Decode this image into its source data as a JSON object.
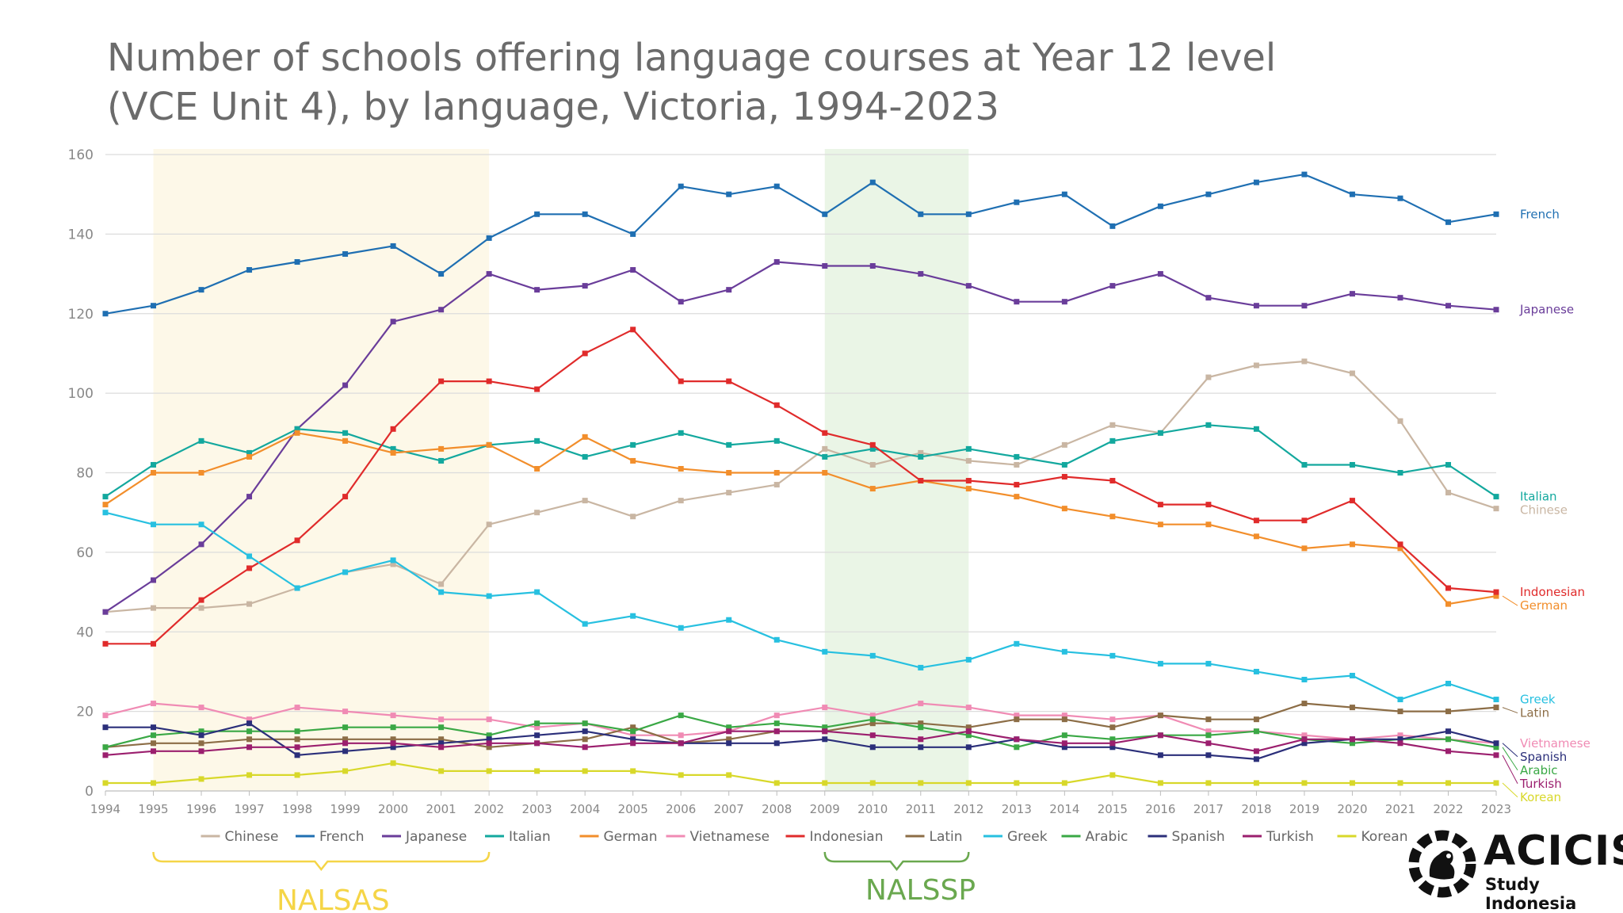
{
  "chart_data": {
    "type": "line",
    "title_line1": "Number of schools offering language courses at Year 12 level",
    "title_line2": "(VCE Unit 4), by language, Victoria, 1994-2023",
    "ylim": [
      0,
      160
    ],
    "yticks": [
      0,
      20,
      40,
      60,
      80,
      100,
      120,
      140,
      160
    ],
    "grid": true,
    "legend_position": "bottom",
    "x": [
      1994,
      1995,
      1996,
      1997,
      1998,
      1999,
      2000,
      2001,
      2002,
      2003,
      2004,
      2005,
      2006,
      2007,
      2008,
      2009,
      2010,
      2011,
      2012,
      2013,
      2014,
      2015,
      2016,
      2017,
      2018,
      2019,
      2020,
      2021,
      2022,
      2023
    ],
    "series": [
      {
        "name": "Chinese",
        "color": "#c9b6a3",
        "values": [
          45,
          46,
          46,
          47,
          51,
          55,
          57,
          52,
          67,
          70,
          73,
          69,
          73,
          75,
          77,
          86,
          82,
          85,
          83,
          82,
          87,
          92,
          90,
          104,
          107,
          108,
          105,
          93,
          75,
          71
        ]
      },
      {
        "name": "French",
        "color": "#1f6fb2",
        "values": [
          120,
          122,
          126,
          131,
          133,
          135,
          137,
          130,
          139,
          145,
          145,
          140,
          152,
          150,
          152,
          145,
          153,
          145,
          145,
          148,
          150,
          142,
          147,
          150,
          153,
          155,
          150,
          149,
          143,
          145
        ]
      },
      {
        "name": "Japanese",
        "color": "#6a3d9a",
        "values": [
          45,
          53,
          62,
          74,
          91,
          102,
          118,
          121,
          130,
          126,
          127,
          131,
          123,
          126,
          133,
          132,
          132,
          130,
          127,
          123,
          123,
          127,
          130,
          124,
          122,
          122,
          125,
          124,
          122,
          121
        ]
      },
      {
        "name": "Italian",
        "color": "#13a89e",
        "values": [
          74,
          82,
          88,
          85,
          91,
          90,
          86,
          83,
          87,
          88,
          84,
          87,
          90,
          87,
          88,
          84,
          86,
          84,
          86,
          84,
          82,
          88,
          90,
          92,
          91,
          82,
          82,
          80,
          82,
          74
        ]
      },
      {
        "name": "German",
        "color": "#f28e2b",
        "values": [
          72,
          80,
          80,
          84,
          90,
          88,
          85,
          86,
          87,
          81,
          89,
          83,
          81,
          80,
          80,
          80,
          76,
          78,
          76,
          74,
          71,
          69,
          67,
          67,
          64,
          61,
          62,
          61,
          47,
          49
        ]
      },
      {
        "name": "Vietnamese",
        "color": "#f08bb4",
        "values": [
          19,
          22,
          21,
          18,
          21,
          20,
          19,
          18,
          18,
          16,
          17,
          14,
          14,
          15,
          19,
          21,
          19,
          22,
          21,
          19,
          19,
          18,
          19,
          15,
          15,
          14,
          13,
          14,
          13,
          12
        ]
      },
      {
        "name": "Indonesian",
        "color": "#e02b2b",
        "values": [
          37,
          37,
          48,
          56,
          63,
          74,
          91,
          103,
          103,
          101,
          110,
          116,
          103,
          103,
          97,
          90,
          87,
          78,
          78,
          77,
          79,
          78,
          72,
          72,
          68,
          68,
          73,
          62,
          51,
          50
        ]
      },
      {
        "name": "Latin",
        "color": "#8c6d46",
        "values": [
          11,
          12,
          12,
          13,
          13,
          13,
          13,
          13,
          11,
          12,
          13,
          16,
          12,
          13,
          15,
          15,
          17,
          17,
          16,
          18,
          18,
          16,
          19,
          18,
          18,
          22,
          21,
          20,
          20,
          21
        ]
      },
      {
        "name": "Greek",
        "color": "#27c0e0",
        "values": [
          70,
          67,
          67,
          59,
          51,
          55,
          58,
          50,
          49,
          50,
          42,
          44,
          41,
          43,
          38,
          35,
          34,
          31,
          33,
          37,
          35,
          34,
          32,
          32,
          30,
          28,
          29,
          23,
          27,
          23
        ]
      },
      {
        "name": "Arabic",
        "color": "#3aa845",
        "values": [
          11,
          14,
          15,
          15,
          15,
          16,
          16,
          16,
          14,
          17,
          17,
          15,
          19,
          16,
          17,
          16,
          18,
          16,
          14,
          11,
          14,
          13,
          14,
          14,
          15,
          13,
          12,
          13,
          13,
          11
        ]
      },
      {
        "name": "Spanish",
        "color": "#2b2f7a",
        "values": [
          16,
          16,
          14,
          17,
          9,
          10,
          11,
          12,
          13,
          14,
          15,
          13,
          12,
          12,
          12,
          13,
          11,
          11,
          11,
          13,
          11,
          11,
          9,
          9,
          8,
          12,
          13,
          13,
          15,
          12
        ]
      },
      {
        "name": "Turkish",
        "color": "#9b1f6e",
        "values": [
          9,
          10,
          10,
          11,
          11,
          12,
          12,
          11,
          12,
          12,
          11,
          12,
          12,
          15,
          15,
          15,
          14,
          13,
          15,
          13,
          12,
          12,
          14,
          12,
          10,
          13,
          13,
          12,
          10,
          9
        ]
      },
      {
        "name": "Korean",
        "color": "#d8d82a",
        "values": [
          2,
          2,
          3,
          4,
          4,
          5,
          7,
          5,
          5,
          5,
          5,
          5,
          4,
          4,
          2,
          2,
          2,
          2,
          2,
          2,
          2,
          4,
          2,
          2,
          2,
          2,
          2,
          2,
          2,
          2
        ]
      }
    ],
    "annotations": [
      {
        "label": "NALSAS",
        "from": 1995,
        "to": 2002,
        "color": "#f5d547",
        "fill": "#fdf8e8"
      },
      {
        "label": "NALSSP",
        "from": 2009,
        "to": 2012,
        "color": "#6aa84f",
        "fill": "#eaf5e6"
      }
    ]
  },
  "brand": {
    "name": "ACICIS",
    "tagline": "Study Indonesia"
  }
}
